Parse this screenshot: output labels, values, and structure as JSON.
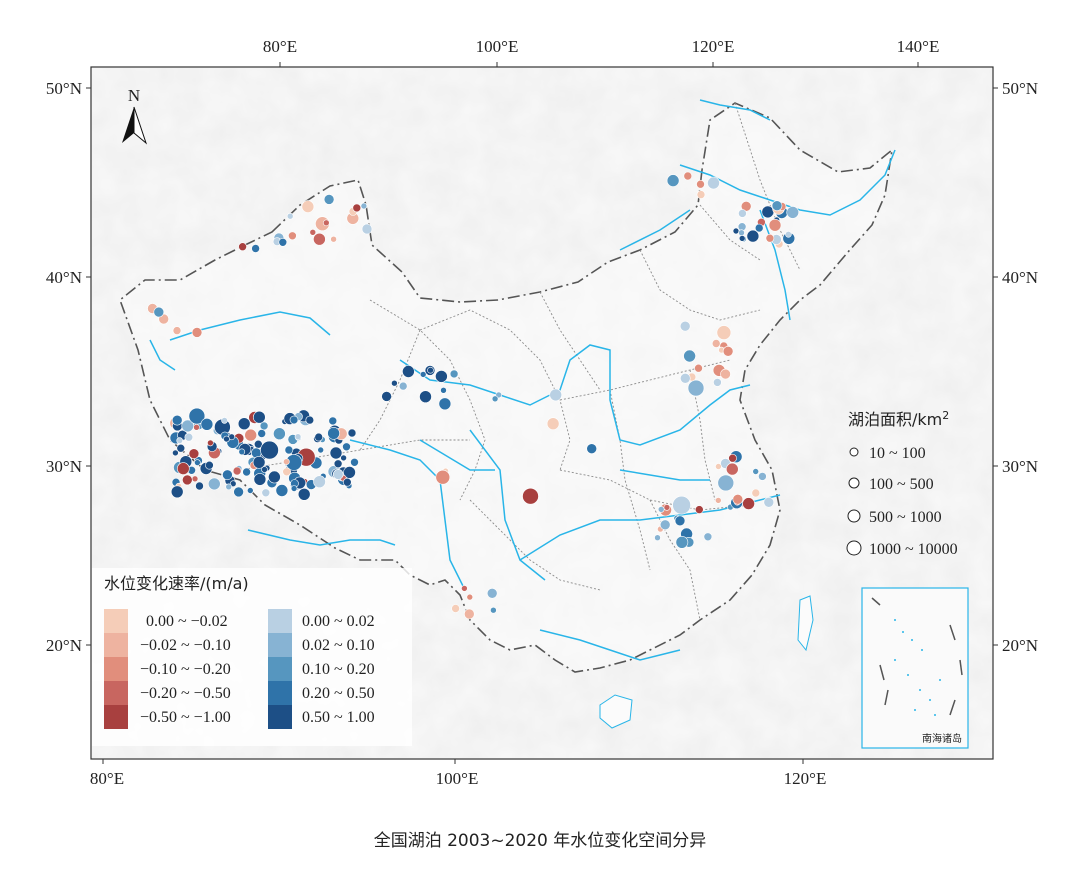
{
  "caption": "全国湖泊 2003~2020 年水位变化空间分异",
  "north_label": "N",
  "axes": {
    "top_lon_labels": [
      "80°E",
      "100°E",
      "120°E",
      "140°E"
    ],
    "bottom_lon_labels": [
      "80°E",
      "100°E",
      "120°E"
    ],
    "left_lat_labels": [
      "50°N",
      "40°N",
      "30°N",
      "20°N"
    ],
    "right_lat_labels": [
      "50°N",
      "40°N",
      "30°N",
      "20°N"
    ]
  },
  "rate_legend": {
    "title": "水位变化速率/(m/a)",
    "negative": [
      {
        "label": "0.00 ~ −0.02",
        "color": "#f5cdb8"
      },
      {
        "label": "−0.02 ~ −0.10",
        "color": "#eeb3a0"
      },
      {
        "label": "−0.10 ~ −0.20",
        "color": "#e18e7c"
      },
      {
        "label": "−0.20 ~ −0.50",
        "color": "#c86660"
      },
      {
        "label": "−0.50 ~ −1.00",
        "color": "#a8403f"
      }
    ],
    "positive": [
      {
        "label": "0.00 ~ 0.02",
        "color": "#b9d0e3"
      },
      {
        "label": "0.02 ~ 0.10",
        "color": "#87b3d3"
      },
      {
        "label": "0.10 ~ 0.20",
        "color": "#5696bf"
      },
      {
        "label": "0.20 ~ 0.50",
        "color": "#2f73a9"
      },
      {
        "label": "0.50 ~ 1.00",
        "color": "#1d4f86"
      }
    ]
  },
  "area_legend": {
    "title": "湖泊面积/km",
    "title_superscript": "2",
    "classes": [
      "10 ~ 100",
      "100 ~ 500",
      "500 ~ 1000",
      "1000 ~ 10000"
    ]
  },
  "inset_label": "南海诸岛",
  "colors": {
    "river": "#29b5e8",
    "border": "#555555",
    "province": "#8a8a8a",
    "frame": "#333333",
    "inset_frame": "#29b5e8"
  }
}
